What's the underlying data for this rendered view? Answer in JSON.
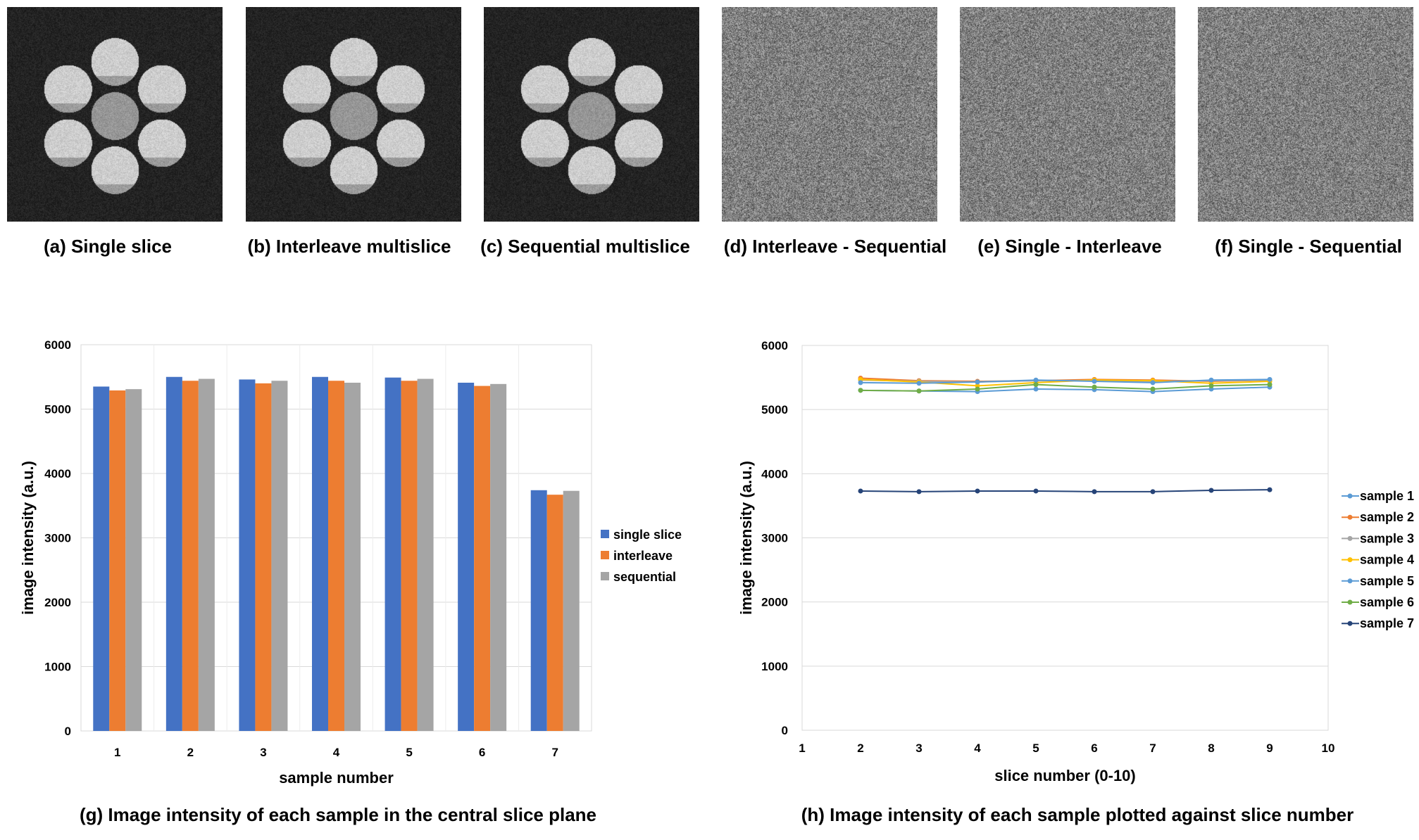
{
  "panels": [
    {
      "label": "(a) Single slice",
      "type": "phantom"
    },
    {
      "label": "(b) Interleave multislice",
      "type": "phantom"
    },
    {
      "label": "(c) Sequential multislice",
      "type": "phantom"
    },
    {
      "label": "(d) Interleave - Sequential",
      "type": "noise"
    },
    {
      "label": "(e) Single - Interleave",
      "type": "noise"
    },
    {
      "label": "(f) Single - Sequential",
      "type": "noise"
    }
  ],
  "colors": {
    "single": "#4472C4",
    "interleave": "#ED7D31",
    "sequential": "#A5A5A5",
    "sample1": "#5B9BD5",
    "sample2": "#ED7D31",
    "sample3": "#A5A5A5",
    "sample4": "#FFC000",
    "sample5": "#5B9BD5",
    "sample6": "#70AD47",
    "sample7": "#264478"
  },
  "chart_data": [
    {
      "type": "bar",
      "caption": "(g) Image intensity of each sample in the central slice plane",
      "xlabel": "sample number",
      "ylabel": "image intensity (a.u.)",
      "ylim": [
        0,
        6000
      ],
      "yticks": [
        "0",
        "1000",
        "2000",
        "3000",
        "4000",
        "5000",
        "6000"
      ],
      "grid": true,
      "legend": "right",
      "categories": [
        "1",
        "2",
        "3",
        "4",
        "5",
        "6",
        "7"
      ],
      "series": [
        {
          "name": "single slice",
          "values": [
            5350,
            5500,
            5460,
            5500,
            5490,
            5410,
            3740
          ]
        },
        {
          "name": "interleave",
          "values": [
            5290,
            5440,
            5400,
            5440,
            5440,
            5360,
            3670
          ]
        },
        {
          "name": "sequential",
          "values": [
            5310,
            5470,
            5440,
            5410,
            5470,
            5390,
            3730
          ]
        }
      ]
    },
    {
      "type": "line",
      "caption": "(h) Image intensity of each sample plotted against slice number",
      "xlabel": "slice number (0-10)",
      "ylabel": "image intensity (a.u.)",
      "xlim": [
        1,
        10
      ],
      "ylim": [
        0,
        6000
      ],
      "xticks": [
        "1",
        "2",
        "3",
        "4",
        "5",
        "6",
        "7",
        "8",
        "9",
        "10"
      ],
      "yticks": [
        "0",
        "1000",
        "2000",
        "3000",
        "4000",
        "5000",
        "6000"
      ],
      "grid": true,
      "legend": "right",
      "x": [
        2,
        3,
        4,
        5,
        6,
        7,
        8,
        9
      ],
      "series": [
        {
          "name": "sample 1",
          "values": [
            5300,
            5290,
            5280,
            5320,
            5310,
            5280,
            5320,
            5350
          ]
        },
        {
          "name": "sample 2",
          "values": [
            5490,
            5450,
            5440,
            5450,
            5470,
            5460,
            5440,
            5460
          ]
        },
        {
          "name": "sample 3",
          "values": [
            5460,
            5440,
            5430,
            5450,
            5450,
            5440,
            5450,
            5460
          ]
        },
        {
          "name": "sample 4",
          "values": [
            5470,
            5430,
            5370,
            5420,
            5460,
            5450,
            5410,
            5440
          ]
        },
        {
          "name": "sample 5",
          "values": [
            5420,
            5410,
            5430,
            5460,
            5440,
            5420,
            5460,
            5470
          ]
        },
        {
          "name": "sample 6",
          "values": [
            5300,
            5290,
            5320,
            5390,
            5350,
            5320,
            5370,
            5390
          ]
        },
        {
          "name": "sample 7",
          "values": [
            3730,
            3720,
            3730,
            3730,
            3720,
            3720,
            3740,
            3750
          ]
        }
      ]
    }
  ]
}
